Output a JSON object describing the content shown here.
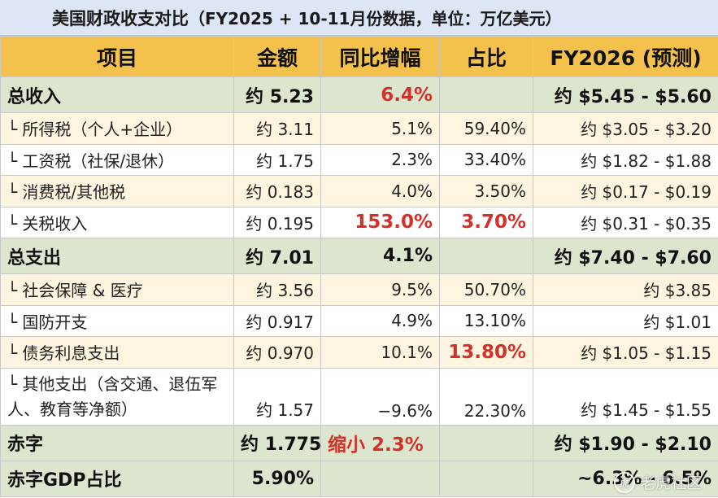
{
  "title": {
    "main": "美国财政收支对比",
    "sub": "（FY2025 + 10-11月份数据，单位：万亿美元）"
  },
  "columns": [
    "项目",
    "金额",
    "同比增幅",
    "占比",
    "FY2026 (预测)"
  ],
  "rows": [
    {
      "type": "total",
      "item": "总收入",
      "amount": "约 5.23",
      "yoy": "6.4%",
      "share": "",
      "forecast": "约 $5.45 - $5.60",
      "yoy_highlight": true
    },
    {
      "type": "sub",
      "item": "└ 所得税（个人+企业）",
      "amount": "约 3.11",
      "yoy": "5.1%",
      "share": "59.40%",
      "forecast": "约 $3.05 - $3.20"
    },
    {
      "type": "sub",
      "item": "└ 工资税（社保/退休）",
      "amount": "约 1.75",
      "yoy": "2.3%",
      "share": "33.40%",
      "forecast": "约 $1.82 - $1.88"
    },
    {
      "type": "sub",
      "item": "└ 消费税/其他税",
      "amount": "约 0.183",
      "yoy": "4.0%",
      "share": "3.50%",
      "forecast": "约 $0.17 - $0.19"
    },
    {
      "type": "sub",
      "item": "└ 关税收入",
      "amount": "约 0.195",
      "yoy": "153.0%",
      "share": "3.70%",
      "forecast": "约 $0.31 - $0.35",
      "yoy_highlight": true,
      "share_highlight": true
    },
    {
      "type": "total",
      "item": "总支出",
      "amount": "约 7.01",
      "yoy": "4.1%",
      "share": "",
      "forecast": "约 $7.40 - $7.60"
    },
    {
      "type": "sub",
      "item": "└ 社会保障 & 医疗",
      "amount": "约 3.56",
      "yoy": "9.5%",
      "share": "50.70%",
      "forecast": "约 $3.85"
    },
    {
      "type": "sub",
      "item": "└ 国防开支",
      "amount": "约 0.917",
      "yoy": "4.9%",
      "share": "13.10%",
      "forecast": "约 $1.01"
    },
    {
      "type": "sub",
      "item": "└ 债务利息支出",
      "amount": "约 0.970",
      "yoy": "10.1%",
      "share": "13.80%",
      "forecast": "约 $1.05 - $1.15",
      "share_highlight": true
    },
    {
      "type": "sub",
      "item": "└ 其他支出（含交通、退伍军人、教育等净额）",
      "amount": "约 1.57",
      "yoy": "−9.6%",
      "share": "22.30%",
      "forecast": "约 $1.45 - $1.55",
      "tall": true
    },
    {
      "type": "total",
      "item": "赤字",
      "amount": "约 1.775",
      "yoy": "缩小 2.3%",
      "share": "",
      "forecast": "约 $1.90 - $2.10",
      "yoy_highlight": true,
      "yoy_left": true
    },
    {
      "type": "total",
      "item": "赤字GDP占比",
      "amount": "5.90%",
      "yoy": "",
      "share": "",
      "forecast": "~6.3% - 6.5%"
    }
  ],
  "watermark": {
    "logo": "虎",
    "text": "老虎社区"
  }
}
